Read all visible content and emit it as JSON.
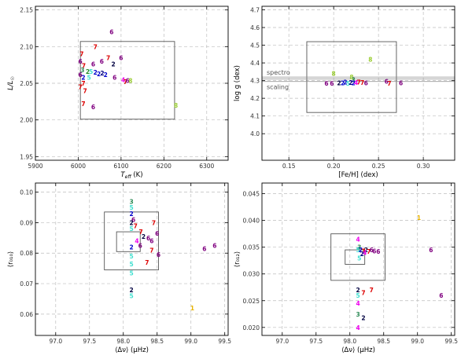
{
  "chart_data": [
    {
      "type": "scatter",
      "id": "hrd",
      "xlabel": "T_eff (K)",
      "ylabel": "L/L☉",
      "xlim": [
        5900,
        6350
      ],
      "ylim": [
        1.945,
        2.155
      ],
      "xticks": [
        5900,
        6000,
        6100,
        6200,
        6300
      ],
      "yticks": [
        1.95,
        2.0,
        2.05,
        2.1,
        2.15
      ],
      "ytick_decimals": 2,
      "grid": true,
      "boxes": [
        {
          "x0": 6005,
          "x1": 6225,
          "y0": 2.001,
          "y1": 2.107
        }
      ],
      "hlines": [],
      "points": [
        {
          "x": 6078,
          "y": 2.12,
          "label": "6",
          "color": "#800080"
        },
        {
          "x": 6040,
          "y": 2.1,
          "label": "7",
          "color": "#dd0000"
        },
        {
          "x": 6070,
          "y": 2.085,
          "label": "7",
          "color": "#dd0000"
        },
        {
          "x": 6100,
          "y": 2.085,
          "label": "6",
          "color": "#800080"
        },
        {
          "x": 6008,
          "y": 2.09,
          "label": "7",
          "color": "#dd0000"
        },
        {
          "x": 6005,
          "y": 2.08,
          "label": "6",
          "color": "#800080"
        },
        {
          "x": 6055,
          "y": 2.08,
          "label": "6",
          "color": "#800080"
        },
        {
          "x": 6035,
          "y": 2.076,
          "label": "6",
          "color": "#800080"
        },
        {
          "x": 6082,
          "y": 2.076,
          "label": "2",
          "color": "#000040"
        },
        {
          "x": 6013,
          "y": 2.074,
          "label": "7",
          "color": "#dd0000"
        },
        {
          "x": 6010,
          "y": 2.068,
          "label": "3",
          "color": "#2e8b57"
        },
        {
          "x": 6022,
          "y": 2.066,
          "label": "2",
          "color": "#228b22"
        },
        {
          "x": 6030,
          "y": 2.066,
          "label": "5",
          "color": "#40e0d0"
        },
        {
          "x": 6040,
          "y": 2.065,
          "label": "2",
          "color": "#0000cd"
        },
        {
          "x": 6048,
          "y": 2.063,
          "label": "2",
          "color": "#0000cd"
        },
        {
          "x": 6056,
          "y": 2.064,
          "label": "2",
          "color": "#000080"
        },
        {
          "x": 6064,
          "y": 2.062,
          "label": "2",
          "color": "#0000cd"
        },
        {
          "x": 6005,
          "y": 2.062,
          "label": "6",
          "color": "#800080"
        },
        {
          "x": 6012,
          "y": 2.058,
          "label": "2",
          "color": "#0000cd"
        },
        {
          "x": 6025,
          "y": 2.058,
          "label": "5",
          "color": "#40e0d0"
        },
        {
          "x": 6085,
          "y": 2.058,
          "label": "6",
          "color": "#800080"
        },
        {
          "x": 6105,
          "y": 2.055,
          "label": "4",
          "color": "#ee00ee"
        },
        {
          "x": 6110,
          "y": 2.052,
          "label": "7",
          "color": "#dd0000"
        },
        {
          "x": 6115,
          "y": 2.054,
          "label": "6",
          "color": "#800080"
        },
        {
          "x": 6122,
          "y": 2.054,
          "label": "8",
          "color": "#9acd32"
        },
        {
          "x": 6012,
          "y": 2.05,
          "label": "7",
          "color": "#dd0000"
        },
        {
          "x": 6005,
          "y": 2.045,
          "label": "7",
          "color": "#dd0000"
        },
        {
          "x": 6016,
          "y": 2.04,
          "label": "7",
          "color": "#dd0000"
        },
        {
          "x": 6012,
          "y": 2.022,
          "label": "7",
          "color": "#dd0000"
        },
        {
          "x": 6035,
          "y": 2.018,
          "label": "6",
          "color": "#800080"
        },
        {
          "x": 6228,
          "y": 2.02,
          "label": "8",
          "color": "#9acd32"
        }
      ]
    },
    {
      "type": "scatter",
      "id": "logg-feh",
      "xlabel": "[Fe/H] (dex)",
      "ylabel": "log g (dex)",
      "xlim": [
        0.12,
        0.335
      ],
      "ylim": [
        3.85,
        4.72
      ],
      "xticks": [
        0.15,
        0.2,
        0.25,
        0.3
      ],
      "yticks": [
        4.0,
        4.1,
        4.2,
        4.3,
        4.4,
        4.5,
        4.6,
        4.7
      ],
      "ytick_decimals": 1,
      "grid": true,
      "boxes": [
        {
          "x0": 0.17,
          "x1": 0.27,
          "y0": 4.12,
          "y1": 4.52
        }
      ],
      "hlines": [
        {
          "y": 4.32,
          "label": "spectro"
        },
        {
          "y": 4.31,
          "label": ""
        },
        {
          "y": 4.295,
          "label": "scaling"
        }
      ],
      "points": [
        {
          "x": 0.241,
          "y": 4.42,
          "label": "8",
          "color": "#9acd32"
        },
        {
          "x": 0.2,
          "y": 4.34,
          "label": "8",
          "color": "#9acd32"
        },
        {
          "x": 0.22,
          "y": 4.32,
          "label": "8",
          "color": "#9acd32"
        },
        {
          "x": 0.222,
          "y": 4.305,
          "label": "3",
          "color": "#2e8b57"
        },
        {
          "x": 0.192,
          "y": 4.285,
          "label": "6",
          "color": "#800080"
        },
        {
          "x": 0.198,
          "y": 4.285,
          "label": "6",
          "color": "#800080"
        },
        {
          "x": 0.206,
          "y": 4.288,
          "label": "2",
          "color": "#000040"
        },
        {
          "x": 0.21,
          "y": 4.288,
          "label": "2",
          "color": "#0000cd"
        },
        {
          "x": 0.213,
          "y": 4.292,
          "label": "2",
          "color": "#0000cd"
        },
        {
          "x": 0.216,
          "y": 4.286,
          "label": "5",
          "color": "#40e0d0"
        },
        {
          "x": 0.219,
          "y": 4.29,
          "label": "2",
          "color": "#000080"
        },
        {
          "x": 0.222,
          "y": 4.288,
          "label": "2",
          "color": "#0000cd"
        },
        {
          "x": 0.225,
          "y": 4.29,
          "label": "4",
          "color": "#ee00ee"
        },
        {
          "x": 0.228,
          "y": 4.292,
          "label": "7",
          "color": "#dd0000"
        },
        {
          "x": 0.232,
          "y": 4.29,
          "label": "7",
          "color": "#dd0000"
        },
        {
          "x": 0.236,
          "y": 4.288,
          "label": "6",
          "color": "#800080"
        },
        {
          "x": 0.259,
          "y": 4.296,
          "label": "6",
          "color": "#800080"
        },
        {
          "x": 0.262,
          "y": 4.285,
          "label": "7",
          "color": "#dd0000"
        },
        {
          "x": 0.275,
          "y": 4.288,
          "label": "6",
          "color": "#800080"
        }
      ]
    },
    {
      "type": "scatter",
      "id": "r010-dnu",
      "xlabel": "⟨Δν⟩ (μHz)",
      "ylabel": "⟨r₀₁₀⟩",
      "xlim": [
        96.7,
        99.55
      ],
      "ylim": [
        0.053,
        0.103
      ],
      "xticks": [
        97.0,
        97.5,
        98.0,
        98.5,
        99.0,
        99.5
      ],
      "yticks": [
        0.06,
        0.07,
        0.08,
        0.09,
        0.1
      ],
      "ytick_decimals": 2,
      "grid": true,
      "boxes": [
        {
          "x0": 97.72,
          "x1": 98.52,
          "y0": 0.0745,
          "y1": 0.0935
        },
        {
          "x0": 97.9,
          "x1": 98.25,
          "y0": 0.0805,
          "y1": 0.087
        }
      ],
      "hlines": [],
      "points": [
        {
          "x": 98.12,
          "y": 0.097,
          "label": "3",
          "color": "#2e8b57"
        },
        {
          "x": 98.12,
          "y": 0.095,
          "label": "5",
          "color": "#40e0d0"
        },
        {
          "x": 98.12,
          "y": 0.093,
          "label": "2",
          "color": "#0000cd"
        },
        {
          "x": 98.15,
          "y": 0.091,
          "label": "6",
          "color": "#800080"
        },
        {
          "x": 98.12,
          "y": 0.09,
          "label": "2",
          "color": "#000040"
        },
        {
          "x": 98.12,
          "y": 0.088,
          "label": "5",
          "color": "#40e0d0"
        },
        {
          "x": 98.18,
          "y": 0.089,
          "label": "7",
          "color": "#dd0000"
        },
        {
          "x": 98.26,
          "y": 0.087,
          "label": "7",
          "color": "#dd0000"
        },
        {
          "x": 98.3,
          "y": 0.0855,
          "label": "2",
          "color": "#000040"
        },
        {
          "x": 98.37,
          "y": 0.085,
          "label": "6",
          "color": "#800080"
        },
        {
          "x": 98.42,
          "y": 0.084,
          "label": "6",
          "color": "#800080"
        },
        {
          "x": 98.2,
          "y": 0.084,
          "label": "4",
          "color": "#ee00ee"
        },
        {
          "x": 98.25,
          "y": 0.0825,
          "label": "6",
          "color": "#800080"
        },
        {
          "x": 98.12,
          "y": 0.082,
          "label": "2",
          "color": "#0000cd"
        },
        {
          "x": 98.45,
          "y": 0.09,
          "label": "7",
          "color": "#dd0000"
        },
        {
          "x": 98.5,
          "y": 0.0865,
          "label": "6",
          "color": "#800080"
        },
        {
          "x": 98.52,
          "y": 0.0795,
          "label": "6",
          "color": "#800080"
        },
        {
          "x": 98.35,
          "y": 0.077,
          "label": "7",
          "color": "#dd0000"
        },
        {
          "x": 98.42,
          "y": 0.081,
          "label": "7",
          "color": "#dd0000"
        },
        {
          "x": 98.12,
          "y": 0.079,
          "label": "5",
          "color": "#40e0d0"
        },
        {
          "x": 98.12,
          "y": 0.0765,
          "label": "5",
          "color": "#40e0d0"
        },
        {
          "x": 98.12,
          "y": 0.0735,
          "label": "5",
          "color": "#40e0d0"
        },
        {
          "x": 98.12,
          "y": 0.068,
          "label": "2",
          "color": "#000040"
        },
        {
          "x": 98.12,
          "y": 0.066,
          "label": "5",
          "color": "#40e0d0"
        },
        {
          "x": 99.2,
          "y": 0.0815,
          "label": "6",
          "color": "#800080"
        },
        {
          "x": 99.35,
          "y": 0.0825,
          "label": "6",
          "color": "#800080"
        },
        {
          "x": 99.02,
          "y": 0.062,
          "label": "1",
          "color": "#e8b400"
        }
      ]
    },
    {
      "type": "scatter",
      "id": "r012-dnu",
      "xlabel": "⟨Δν⟩ (μHz)",
      "ylabel": "⟨r₀₁₂⟩",
      "xlim": [
        96.7,
        99.55
      ],
      "ylim": [
        0.0185,
        0.047
      ],
      "xticks": [
        97.0,
        97.5,
        98.0,
        98.5,
        99.0,
        99.5
      ],
      "yticks": [
        0.02,
        0.025,
        0.03,
        0.035,
        0.04,
        0.045
      ],
      "ytick_decimals": 3,
      "grid": true,
      "boxes": [
        {
          "x0": 97.72,
          "x1": 98.52,
          "y0": 0.0288,
          "y1": 0.0375
        },
        {
          "x0": 97.93,
          "x1": 98.22,
          "y0": 0.0318,
          "y1": 0.0345
        }
      ],
      "hlines": [],
      "points": [
        {
          "x": 98.12,
          "y": 0.0365,
          "label": "4",
          "color": "#ee00ee"
        },
        {
          "x": 98.14,
          "y": 0.035,
          "label": "3",
          "color": "#2e8b57"
        },
        {
          "x": 98.12,
          "y": 0.0345,
          "label": "5",
          "color": "#40e0d0"
        },
        {
          "x": 98.16,
          "y": 0.0345,
          "label": "2",
          "color": "#0000cd"
        },
        {
          "x": 98.2,
          "y": 0.0343,
          "label": "7",
          "color": "#dd0000"
        },
        {
          "x": 98.24,
          "y": 0.0345,
          "label": "2",
          "color": "#000040"
        },
        {
          "x": 98.28,
          "y": 0.0342,
          "label": "7",
          "color": "#dd0000"
        },
        {
          "x": 98.32,
          "y": 0.0345,
          "label": "6",
          "color": "#800080"
        },
        {
          "x": 98.36,
          "y": 0.0343,
          "label": "6",
          "color": "#800080"
        },
        {
          "x": 98.22,
          "y": 0.034,
          "label": "4",
          "color": "#ee00ee"
        },
        {
          "x": 98.18,
          "y": 0.0338,
          "label": "2",
          "color": "#000080"
        },
        {
          "x": 98.42,
          "y": 0.0342,
          "label": "6",
          "color": "#800080"
        },
        {
          "x": 98.14,
          "y": 0.033,
          "label": "5",
          "color": "#40e0d0"
        },
        {
          "x": 98.12,
          "y": 0.027,
          "label": "2",
          "color": "#000040"
        },
        {
          "x": 98.12,
          "y": 0.026,
          "label": "5",
          "color": "#40e0d0"
        },
        {
          "x": 98.12,
          "y": 0.0245,
          "label": "4",
          "color": "#ee00ee"
        },
        {
          "x": 98.2,
          "y": 0.0265,
          "label": "7",
          "color": "#dd0000"
        },
        {
          "x": 98.32,
          "y": 0.027,
          "label": "7",
          "color": "#dd0000"
        },
        {
          "x": 98.12,
          "y": 0.0225,
          "label": "3",
          "color": "#2e8b57"
        },
        {
          "x": 98.2,
          "y": 0.0218,
          "label": "2",
          "color": "#000040"
        },
        {
          "x": 98.12,
          "y": 0.02,
          "label": "4",
          "color": "#ee00ee"
        },
        {
          "x": 99.2,
          "y": 0.0345,
          "label": "6",
          "color": "#800080"
        },
        {
          "x": 99.35,
          "y": 0.026,
          "label": "6",
          "color": "#800080"
        },
        {
          "x": 99.02,
          "y": 0.0405,
          "label": "1",
          "color": "#e8b400"
        }
      ]
    }
  ]
}
